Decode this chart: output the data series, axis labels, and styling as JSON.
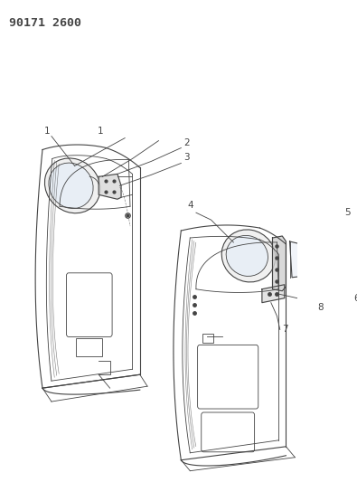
{
  "title": "90171 2600",
  "bg_color": "#ffffff",
  "line_color": "#444444",
  "label_fontsize": 7.5,
  "title_fontsize": 9.5
}
